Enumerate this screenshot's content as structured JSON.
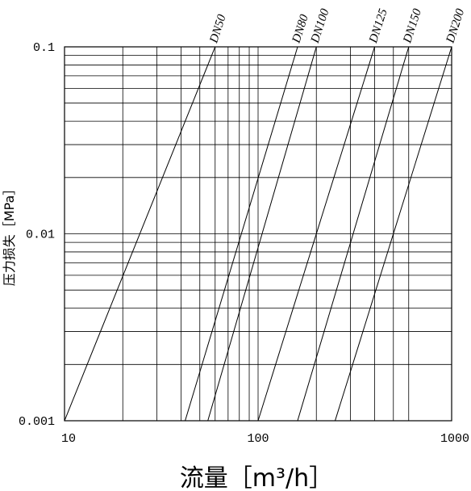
{
  "chart_data": {
    "type": "line",
    "xscale": "log",
    "yscale": "log",
    "xlim": [
      10,
      1000
    ],
    "ylim": [
      0.001,
      0.1
    ],
    "grid": true,
    "xlabel": "流量［m³/h］",
    "ylabel": "压力损失［MPa］",
    "xtick_labels": [
      "10",
      "100",
      "1000"
    ],
    "ytick_labels": [
      "0.001",
      "0.01",
      "0.1"
    ],
    "xgrid_values": [
      20,
      30,
      40,
      50,
      60,
      70,
      80,
      90,
      100,
      200,
      300,
      400,
      500,
      600
    ],
    "ygrid_values": [
      0.002,
      0.003,
      0.004,
      0.005,
      0.006,
      0.007,
      0.008,
      0.009,
      0.01,
      0.02,
      0.03,
      0.04,
      0.05,
      0.06,
      0.07,
      0.08,
      0.09
    ],
    "series": [
      {
        "name": "DN50",
        "x": [
          10,
          60
        ],
        "y": [
          0.001,
          0.1
        ]
      },
      {
        "name": "DN80",
        "x": [
          42,
          160
        ],
        "y": [
          0.001,
          0.1
        ]
      },
      {
        "name": "DN100",
        "x": [
          55,
          200
        ],
        "y": [
          0.001,
          0.1
        ]
      },
      {
        "name": "DN125",
        "x": [
          100,
          400
        ],
        "y": [
          0.001,
          0.1
        ]
      },
      {
        "name": "DN150",
        "x": [
          160,
          600
        ],
        "y": [
          0.001,
          0.1
        ]
      },
      {
        "name": "DN200",
        "x": [
          250,
          1000
        ],
        "y": [
          0.001,
          0.1
        ]
      }
    ]
  }
}
